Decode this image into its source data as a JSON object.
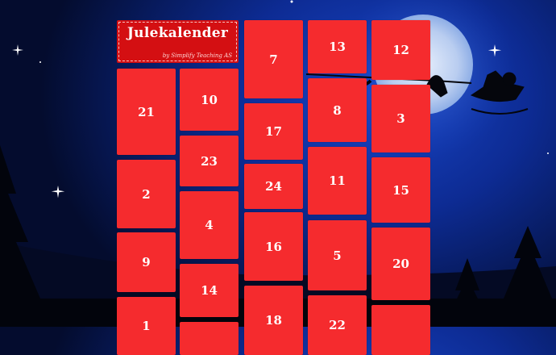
{
  "header": {
    "title": "Julekalender",
    "subtitle": "by Simplify Teaching AS"
  },
  "colors": {
    "tile": "#f52b2e",
    "header": "#d40f12",
    "sky": "#0d2b93",
    "moon": "#b9cdf0"
  },
  "columns": [
    [
      "21",
      "2",
      "9",
      "1"
    ],
    [
      "10",
      "23",
      "4",
      "14",
      ""
    ],
    [
      "7",
      "17",
      "24",
      "16",
      "18"
    ],
    [
      "13",
      "8",
      "11",
      "5",
      "22"
    ],
    [
      "12",
      "3",
      "15",
      "20",
      ""
    ]
  ]
}
